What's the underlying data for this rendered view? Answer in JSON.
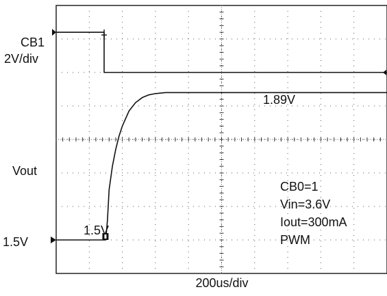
{
  "chart_data": {
    "type": "line",
    "title": "",
    "xlabel": "200us/div",
    "ylabel": "",
    "x_divisions": 10,
    "y_divisions": 8,
    "channels": [
      {
        "name": "CB1",
        "scale": "2V/div"
      },
      {
        "name": "Vout",
        "scale": ""
      }
    ],
    "series": [
      {
        "name": "CB1",
        "x_div": [
          0,
          1.45,
          1.45,
          10
        ],
        "y_div": [
          7.2,
          7.2,
          6.0,
          6.0
        ]
      },
      {
        "name": "Vout",
        "x_div": [
          0,
          1.5,
          1.55,
          1.6,
          1.7,
          1.8,
          1.9,
          2.0,
          2.2,
          2.4,
          2.6,
          2.8,
          3.0,
          3.3,
          3.6,
          10
        ],
        "y_div": [
          1.0,
          1.0,
          1.6,
          2.5,
          3.2,
          3.7,
          4.1,
          4.4,
          4.85,
          5.1,
          5.25,
          5.33,
          5.37,
          5.4,
          5.4,
          5.4
        ]
      }
    ],
    "levels": {
      "vout_start_label": "1.5V",
      "vout_final_label": "1.89V",
      "left_marker_label": "1.5V"
    },
    "annotations": [
      "CB0=1",
      "Vin=3.6V",
      "Iout=300mA",
      "PWM"
    ]
  }
}
